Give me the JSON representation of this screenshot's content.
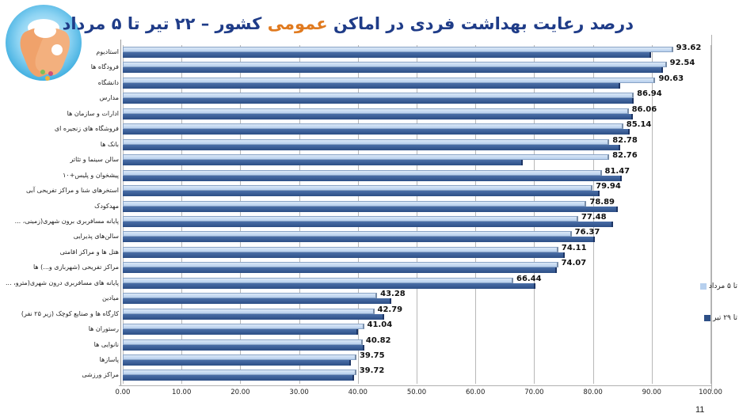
{
  "title": {
    "part1": "درصد رعایت بهداشت فردی در اماکن ",
    "part2": "عمومی",
    "part3": " کشور  –  ۲۲ تیر تا ۵ مرداد"
  },
  "logo": "handwashing-icon",
  "page_number": "11",
  "colors": {
    "series1": "#b7d0ee",
    "series2": "#2d4f86",
    "title": "#1f3c88",
    "title_highlight": "#e07a1f"
  },
  "legend": [
    {
      "label": "تا ۵ مرداد",
      "color": "#b7d0ee"
    },
    {
      "label": "تا ۲۹ تیر",
      "color": "#2d4f86"
    }
  ],
  "x_ticks": [
    "0.00",
    "10.00",
    "20.00",
    "30.00",
    "40.00",
    "50.00",
    "60.00",
    "70.00",
    "80.00",
    "90.00",
    "100.00"
  ],
  "chart_data": {
    "type": "bar",
    "orientation": "horizontal",
    "title": "درصد رعایت بهداشت فردی در اماکن عمومی کشور – ۲۲ تیر تا ۵ مرداد",
    "xlabel": "",
    "ylabel": "",
    "xlim": [
      0,
      100
    ],
    "grid": true,
    "legend_position": "right",
    "categories": [
      "استادیوم",
      "فرودگاه ها",
      "دانشگاه",
      "مدارس",
      "ادارات و سازمان ها",
      "فروشگاه های زنجیره ای",
      "بانک ها",
      "سالن سینما و تئاتر",
      "پیشخوان و پلیس+۱۰",
      "استخرهای شنا و مراکز تفریحی آبی",
      "مهدکودک",
      "پایانه مسافربری برون شهری(زمینی، ...",
      "سالن‌های پذیرایی",
      "هتل ها و مراکز اقامتی",
      "مراکز تفریحی (شهربازی و...) ها",
      "پایانه های مسافربری درون شهری(مترو، ...",
      "میادین",
      "کارگاه ها و صنایع کوچک (زیر ۲۵ نفر)",
      "رستوران ها",
      "نانوایی ها",
      "پاسازها",
      "مراکز ورزشی"
    ],
    "series": [
      {
        "name": "تا ۵ مرداد",
        "values": [
          93.62,
          92.54,
          90.63,
          86.94,
          86.06,
          85.14,
          82.78,
          82.76,
          81.47,
          79.94,
          78.89,
          77.48,
          76.37,
          74.11,
          74.07,
          66.44,
          43.28,
          42.79,
          41.04,
          40.82,
          39.75,
          39.72
        ],
        "labels": [
          "93.62",
          "92.54",
          "90.63",
          "86.94",
          "86.06",
          "85.14",
          "82.78",
          "82.76",
          "81.47",
          "79.94",
          "78.89",
          "77.48",
          "76.37",
          "74.11",
          "74.07",
          "66.44",
          "43.28",
          "42.79",
          "41.04",
          "40.82",
          "39.75",
          "39.72"
        ]
      },
      {
        "name": "تا ۲۹ تیر",
        "values": [
          89.9,
          91.9,
          84.6,
          86.9,
          86.8,
          86.2,
          84.6,
          68.1,
          84.9,
          81.1,
          84.2,
          83.4,
          80.3,
          75.2,
          73.9,
          70.2,
          45.7,
          44.5,
          40.0,
          41.1,
          38.8,
          39.4
        ]
      }
    ]
  }
}
